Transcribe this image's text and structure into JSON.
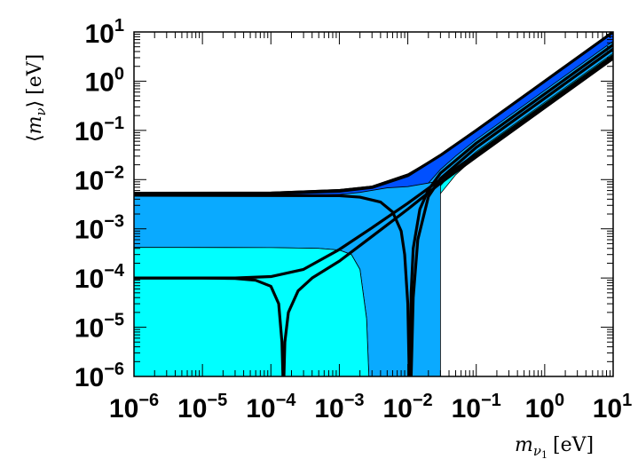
{
  "chart_data": {
    "type": "area",
    "xlabel": {
      "math": "m",
      "sub": "ν",
      "subsub": "1",
      "unit": "[eV]"
    },
    "ylabel": {
      "open": "⟨",
      "math": "m",
      "sub": "ν",
      "close": "⟩",
      "unit": "[eV]"
    },
    "x_scale": "log",
    "y_scale": "log",
    "xlim": [
      1e-06,
      10
    ],
    "ylim": [
      1e-06,
      10
    ],
    "x_ticks": [
      {
        "base": "10",
        "exp": "−6",
        "value": 1e-06
      },
      {
        "base": "10",
        "exp": "−5",
        "value": 1e-05
      },
      {
        "base": "10",
        "exp": "−4",
        "value": 0.0001
      },
      {
        "base": "10",
        "exp": "−3",
        "value": 0.001
      },
      {
        "base": "10",
        "exp": "−2",
        "value": 0.01
      },
      {
        "base": "10",
        "exp": "−1",
        "value": 0.1
      },
      {
        "base": "10",
        "exp": "0",
        "value": 1
      },
      {
        "base": "10",
        "exp": "1",
        "value": 10
      }
    ],
    "y_ticks": [
      {
        "base": "10",
        "exp": "−6",
        "value": 1e-06
      },
      {
        "base": "10",
        "exp": "−5",
        "value": 1e-05
      },
      {
        "base": "10",
        "exp": "−4",
        "value": 0.0001
      },
      {
        "base": "10",
        "exp": "−3",
        "value": 0.001
      },
      {
        "base": "10",
        "exp": "−2",
        "value": 0.01
      },
      {
        "base": "10",
        "exp": "−1",
        "value": 0.1
      },
      {
        "base": "10",
        "exp": "0",
        "value": 1
      },
      {
        "base": "10",
        "exp": "1",
        "value": 10
      }
    ],
    "bands": [
      {
        "color": "#00ffff",
        "upper": [
          [
            1e-06,
            0.00555
          ],
          [
            0.0001,
            0.0056
          ],
          [
            0.001,
            0.0063
          ],
          [
            0.003,
            0.0074
          ],
          [
            0.01,
            0.0131
          ],
          [
            0.03,
            0.032
          ],
          [
            0.1,
            0.101
          ],
          [
            1,
            1.0
          ],
          [
            10,
            10.0
          ]
        ],
        "lower": [
          [
            1e-06,
            1e-06
          ],
          [
            0.016,
            1e-06
          ],
          [
            0.018,
            2e-05
          ],
          [
            0.022,
            0.0015
          ],
          [
            0.03,
            0.0052
          ],
          [
            0.05,
            0.0125
          ],
          [
            0.1,
            0.03
          ],
          [
            1,
            0.3
          ],
          [
            10,
            3.0
          ]
        ]
      },
      {
        "color": "#0aaaff",
        "upper": [
          [
            1e-06,
            0.0055
          ],
          [
            0.0001,
            0.0056
          ],
          [
            0.001,
            0.0063
          ],
          [
            0.003,
            0.0074
          ],
          [
            0.01,
            0.013
          ],
          [
            0.03,
            0.0318
          ],
          [
            0.1,
            0.1005
          ],
          [
            1,
            1.0
          ],
          [
            10,
            10.0
          ]
        ],
        "lower": [
          [
            1e-06,
            1e-06
          ],
          [
            0.0142,
            1e-06
          ],
          [
            0.0155,
            1e-05
          ],
          [
            0.0175,
            0.0005
          ],
          [
            0.02,
            0.0025
          ],
          [
            0.03,
            0.0075
          ],
          [
            0.05,
            0.0165
          ],
          [
            0.1,
            0.037
          ],
          [
            1,
            0.37
          ],
          [
            10,
            3.7
          ]
        ]
      },
      {
        "color": "#0050ff",
        "upper": [
          [
            1e-06,
            0.0054
          ],
          [
            0.0001,
            0.0055
          ],
          [
            0.001,
            0.0062
          ],
          [
            0.003,
            0.0073
          ],
          [
            0.01,
            0.0129
          ],
          [
            0.03,
            0.0316
          ],
          [
            0.1,
            0.1
          ],
          [
            1,
            1.0
          ],
          [
            10,
            10.0
          ]
        ],
        "lower": [
          [
            1e-06,
            1e-06
          ],
          [
            0.0105,
            1e-06
          ],
          [
            0.0109,
            1e-05
          ],
          [
            0.0115,
            0.0001
          ],
          [
            0.0125,
            0.0012
          ],
          [
            0.015,
            0.004
          ],
          [
            0.02,
            0.0085
          ],
          [
            0.03,
            0.016
          ],
          [
            0.05,
            0.03
          ],
          [
            0.1,
            0.065
          ],
          [
            1,
            0.65
          ],
          [
            10,
            6.5
          ]
        ]
      },
      {
        "color": "#0aaaff",
        "upper": [
          [
            1e-06,
            0.0046
          ],
          [
            0.0001,
            0.0046
          ],
          [
            0.001,
            0.005
          ],
          [
            0.002,
            0.0055
          ],
          [
            0.005,
            0.0068
          ],
          [
            0.01,
            0.0072
          ],
          [
            0.02,
            0.0085
          ],
          [
            0.03,
            0.0095
          ]
        ],
        "lower": [
          [
            1e-06,
            0.00042
          ],
          [
            0.0001,
            0.000415
          ],
          [
            0.0005,
            0.0004
          ],
          [
            0.001,
            0.00037
          ],
          [
            0.0015,
            0.0003
          ],
          [
            0.002,
            0.00015
          ],
          [
            0.0025,
            1.5e-05
          ],
          [
            0.0027,
            1e-06
          ],
          [
            0.03,
            1e-06
          ]
        ]
      },
      {
        "color": "#00ffff",
        "upper": [
          [
            1e-06,
            0.00042
          ],
          [
            0.0001,
            0.000415
          ],
          [
            0.0005,
            0.0004
          ],
          [
            0.001,
            0.00037
          ],
          [
            0.0015,
            0.0003
          ],
          [
            0.002,
            0.00015
          ],
          [
            0.0025,
            1.5e-05
          ],
          [
            0.0027,
            1e-06
          ]
        ],
        "lower": [
          [
            1e-06,
            1e-06
          ],
          [
            0.0027,
            1e-06
          ]
        ]
      }
    ],
    "curves": [
      {
        "width": 3.2,
        "points": [
          [
            1e-06,
            0.0052
          ],
          [
            0.0001,
            0.0052
          ],
          [
            0.001,
            0.0058
          ],
          [
            0.003,
            0.0069
          ],
          [
            0.01,
            0.012
          ],
          [
            0.03,
            0.0312
          ],
          [
            0.1,
            0.1
          ],
          [
            1,
            1.0
          ],
          [
            10,
            10.0
          ]
        ]
      },
      {
        "width": 3.2,
        "points": [
          [
            1e-06,
            0.0048
          ],
          [
            0.001,
            0.0047
          ],
          [
            0.002,
            0.0044
          ],
          [
            0.004,
            0.0035
          ],
          [
            0.006,
            0.0022
          ],
          [
            0.008,
            0.0009
          ],
          [
            0.009,
            0.0003
          ],
          [
            0.01,
            3e-05
          ],
          [
            0.0105,
            1e-06
          ]
        ]
      },
      {
        "width": 3.2,
        "points": [
          [
            0.0108,
            1e-06
          ],
          [
            0.0112,
            5e-05
          ],
          [
            0.012,
            0.0004
          ],
          [
            0.015,
            0.0025
          ],
          [
            0.02,
            0.0062
          ],
          [
            0.03,
            0.0135
          ],
          [
            0.1,
            0.055
          ],
          [
            1,
            0.55
          ],
          [
            10,
            5.5
          ]
        ]
      },
      {
        "width": 3.2,
        "points": [
          [
            0.0112,
            1e-06
          ],
          [
            0.012,
            4e-05
          ],
          [
            0.014,
            0.0006
          ],
          [
            0.02,
            0.0045
          ],
          [
            0.03,
            0.0105
          ],
          [
            0.1,
            0.045
          ],
          [
            1,
            0.45
          ],
          [
            10,
            4.5
          ]
        ]
      },
      {
        "width": 3.2,
        "points": [
          [
            1e-06,
            0.0001
          ],
          [
            1e-05,
            0.0001
          ],
          [
            3e-05,
            0.0001
          ],
          [
            0.0001,
            0.000107
          ],
          [
            0.0003,
            0.00015
          ],
          [
            0.001,
            0.00038
          ],
          [
            0.003,
            0.00105
          ],
          [
            0.01,
            0.0033
          ],
          [
            0.03,
            0.01
          ],
          [
            0.1,
            0.033
          ],
          [
            1,
            0.33
          ],
          [
            10,
            3.3
          ]
        ]
      },
      {
        "width": 3.2,
        "points": [
          [
            1e-06,
            0.0001
          ],
          [
            1e-05,
            0.0001
          ],
          [
            3e-05,
            9.8e-05
          ],
          [
            6e-05,
            9e-05
          ],
          [
            0.0001,
            6.8e-05
          ],
          [
            0.00013,
            3e-05
          ],
          [
            0.000145,
            5e-06
          ],
          [
            0.00015,
            1e-06
          ]
        ]
      },
      {
        "width": 3.2,
        "points": [
          [
            0.000155,
            1e-06
          ],
          [
            0.00016,
            5e-06
          ],
          [
            0.00018,
            2e-05
          ],
          [
            0.00025,
            5.5e-05
          ],
          [
            0.0004,
            0.0001
          ],
          [
            0.001,
            0.00022
          ],
          [
            0.003,
            0.0007
          ],
          [
            0.01,
            0.0025
          ],
          [
            0.03,
            0.0085
          ],
          [
            0.1,
            0.029
          ],
          [
            1,
            0.29
          ],
          [
            10,
            2.9
          ]
        ]
      }
    ]
  }
}
